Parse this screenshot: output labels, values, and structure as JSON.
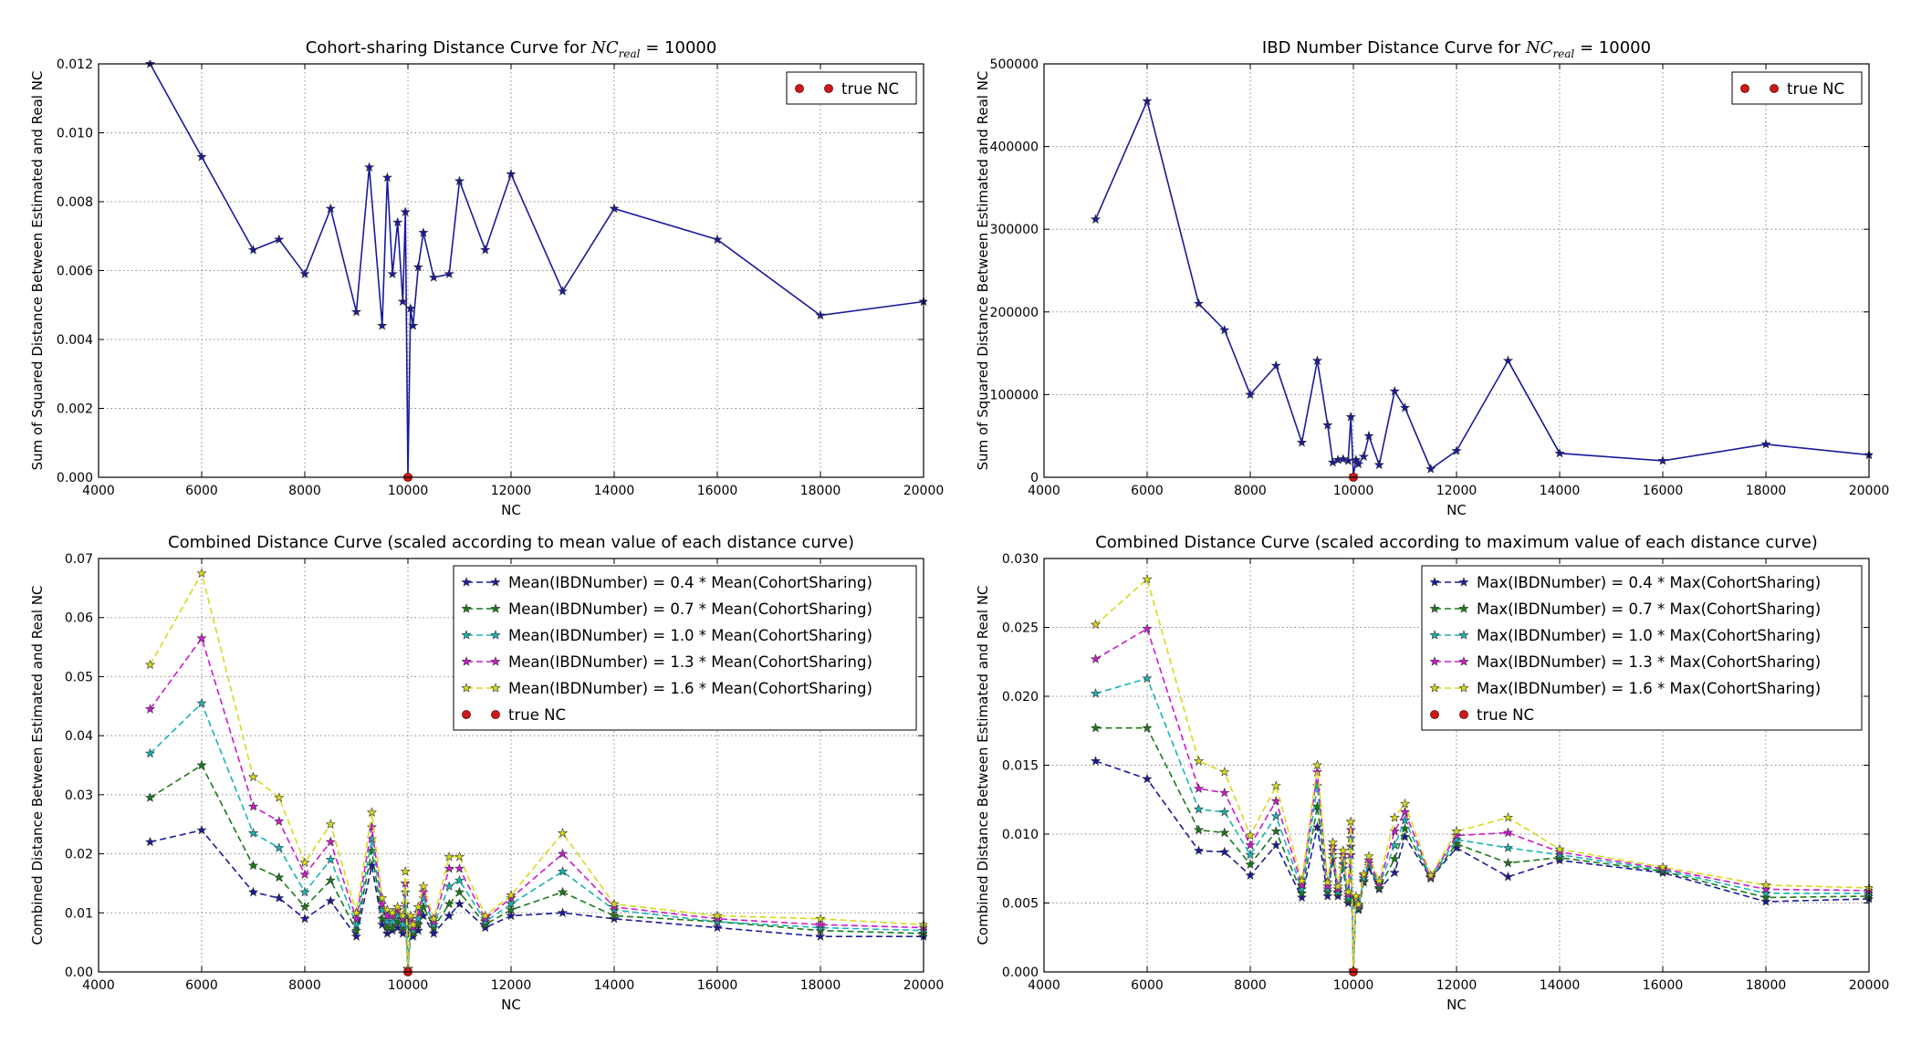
{
  "chart_data": [
    {
      "type": "line",
      "title": "Cohort-sharing Distance Curve for ",
      "title_math": {
        "base": "NC",
        "sub": "real",
        "rest": " = 10000"
      },
      "xlabel": "NC",
      "ylabel": "Sum of Squared Distance Between Estimated and Real NC",
      "xlim": [
        4000,
        20000
      ],
      "ylim": [
        0,
        0.012
      ],
      "xticks": [
        "4000",
        "6000",
        "8000",
        "10000",
        "12000",
        "14000",
        "16000",
        "18000",
        "20000"
      ],
      "yticks": [
        "0.000",
        "0.002",
        "0.004",
        "0.006",
        "0.008",
        "0.010",
        "0.012"
      ],
      "grid": true,
      "legend_position": "top-right",
      "x": [
        5000,
        6000,
        7000,
        7500,
        8000,
        8500,
        9000,
        9250,
        9500,
        9600,
        9700,
        9800,
        9900,
        9950,
        10000,
        10050,
        10100,
        10200,
        10300,
        10500,
        10800,
        11000,
        11500,
        12000,
        13000,
        14000,
        16000,
        18000,
        20000
      ],
      "series": [
        {
          "values": [
            0.012,
            0.0093,
            0.0066,
            0.0069,
            0.0059,
            0.0078,
            0.0048,
            0.009,
            0.0044,
            0.0087,
            0.0059,
            0.0074,
            0.0051,
            0.0077,
            0.0,
            0.0049,
            0.0044,
            0.0061,
            0.0071,
            0.0058,
            0.0059,
            0.0086,
            0.0066,
            0.0088,
            0.0054,
            0.0078,
            0.0069,
            0.0047,
            0.0051
          ],
          "color": "#1a1a9c",
          "style": "solid"
        }
      ],
      "true_nc": {
        "name": "true NC",
        "x": 10000,
        "y": 0,
        "color": "#cc1a1a"
      }
    },
    {
      "type": "line",
      "title": "IBD Number Distance Curve for ",
      "title_math": {
        "base": "NC",
        "sub": "real",
        "rest": " = 10000"
      },
      "xlabel": "NC",
      "ylabel": "Sum of Squared Distance Between Estimated and Real NC",
      "xlim": [
        4000,
        20000
      ],
      "ylim": [
        0,
        500000
      ],
      "xticks": [
        "4000",
        "6000",
        "8000",
        "10000",
        "12000",
        "14000",
        "16000",
        "18000",
        "20000"
      ],
      "yticks": [
        "0",
        "100000",
        "200000",
        "300000",
        "400000",
        "500000"
      ],
      "grid": true,
      "legend_position": "top-right",
      "x": [
        5000,
        6000,
        7000,
        7500,
        8000,
        8500,
        9000,
        9300,
        9500,
        9600,
        9700,
        9800,
        9900,
        9950,
        10000,
        10050,
        10100,
        10200,
        10300,
        10500,
        10800,
        11000,
        11500,
        12000,
        13000,
        14000,
        16000,
        18000,
        20000
      ],
      "series": [
        {
          "values": [
            312000,
            455000,
            210000,
            178000,
            100000,
            135000,
            42000,
            141000,
            63000,
            18000,
            21000,
            22000,
            20000,
            73000,
            2000,
            21000,
            16000,
            25000,
            50000,
            15000,
            104000,
            84000,
            10000,
            32000,
            141000,
            29000,
            20000,
            40000,
            27000
          ],
          "color": "#1a1a9c",
          "style": "solid"
        }
      ],
      "true_nc": {
        "name": "true NC",
        "x": 10000,
        "y": 0,
        "color": "#cc1a1a"
      }
    },
    {
      "type": "line",
      "title": "Combined Distance Curve (scaled according to mean value of each distance curve)",
      "xlabel": "NC",
      "ylabel": "Combined Distance Between Estimated and Real NC",
      "xlim": [
        4000,
        20000
      ],
      "ylim": [
        0,
        0.07
      ],
      "xticks": [
        "4000",
        "6000",
        "8000",
        "10000",
        "12000",
        "14000",
        "16000",
        "18000",
        "20000"
      ],
      "yticks": [
        "0.00",
        "0.01",
        "0.02",
        "0.03",
        "0.04",
        "0.05",
        "0.06",
        "0.07"
      ],
      "grid": true,
      "legend_position": "top-right",
      "x": [
        5000,
        6000,
        7000,
        7500,
        8000,
        8500,
        9000,
        9300,
        9500,
        9600,
        9700,
        9800,
        9900,
        9950,
        10000,
        10050,
        10100,
        10200,
        10300,
        10500,
        10800,
        11000,
        11500,
        12000,
        13000,
        14000,
        16000,
        18000,
        20000
      ],
      "series": [
        {
          "name": "Mean(IBDNumber) = 0.4 * Mean(CohortSharing)",
          "color": "#1a1a9c",
          "style": "dashed",
          "values": [
            0.022,
            0.024,
            0.0135,
            0.0125,
            0.009,
            0.012,
            0.006,
            0.018,
            0.008,
            0.0065,
            0.007,
            0.0075,
            0.0065,
            0.0095,
            0.0005,
            0.0065,
            0.006,
            0.007,
            0.0095,
            0.0065,
            0.0095,
            0.0115,
            0.0075,
            0.0095,
            0.01,
            0.009,
            0.0075,
            0.006,
            0.006
          ]
        },
        {
          "name": "Mean(IBDNumber) = 0.7 * Mean(CohortSharing)",
          "color": "#1a7a1a",
          "style": "dashed",
          "values": [
            0.0295,
            0.035,
            0.018,
            0.016,
            0.011,
            0.0155,
            0.007,
            0.0205,
            0.009,
            0.0075,
            0.0075,
            0.0085,
            0.0075,
            0.0115,
            0.0005,
            0.0075,
            0.0065,
            0.008,
            0.011,
            0.0075,
            0.0115,
            0.0135,
            0.008,
            0.0105,
            0.0135,
            0.0095,
            0.0085,
            0.007,
            0.0065
          ]
        },
        {
          "name": "Mean(IBDNumber) = 1.0 * Mean(CohortSharing)",
          "color": "#1ab3b3",
          "style": "dashed",
          "values": [
            0.037,
            0.0455,
            0.0235,
            0.021,
            0.0135,
            0.019,
            0.008,
            0.0225,
            0.0105,
            0.0085,
            0.0085,
            0.0095,
            0.008,
            0.0135,
            0.0005,
            0.0085,
            0.007,
            0.009,
            0.0125,
            0.008,
            0.0145,
            0.0155,
            0.0085,
            0.0115,
            0.017,
            0.0105,
            0.0085,
            0.0075,
            0.007
          ]
        },
        {
          "name": "Mean(IBDNumber) = 1.3 * Mean(CohortSharing)",
          "color": "#cc1acc",
          "style": "dashed",
          "values": [
            0.0445,
            0.0565,
            0.028,
            0.0255,
            0.0165,
            0.022,
            0.009,
            0.0245,
            0.0115,
            0.0095,
            0.0095,
            0.0105,
            0.009,
            0.015,
            0.0005,
            0.009,
            0.0075,
            0.01,
            0.0135,
            0.0085,
            0.0175,
            0.0175,
            0.009,
            0.0125,
            0.02,
            0.011,
            0.009,
            0.008,
            0.0075
          ]
        },
        {
          "name": "Mean(IBDNumber) = 1.6 * Mean(CohortSharing)",
          "color": "#d9d91a",
          "style": "dashed",
          "values": [
            0.052,
            0.0675,
            0.033,
            0.0295,
            0.0185,
            0.025,
            0.01,
            0.027,
            0.0125,
            0.0105,
            0.01,
            0.011,
            0.0095,
            0.017,
            0.0005,
            0.0095,
            0.008,
            0.011,
            0.0145,
            0.009,
            0.0195,
            0.0195,
            0.0095,
            0.013,
            0.0235,
            0.0115,
            0.0095,
            0.009,
            0.008
          ]
        }
      ],
      "true_nc": {
        "name": "true NC",
        "x": 10000,
        "y": 0,
        "color": "#cc1a1a"
      }
    },
    {
      "type": "line",
      "title": "Combined Distance Curve (scaled according to maximum value of each distance curve)",
      "xlabel": "NC",
      "ylabel": "Combined Distance Between Estimated and Real NC",
      "xlim": [
        4000,
        20000
      ],
      "ylim": [
        0,
        0.03
      ],
      "xticks": [
        "4000",
        "6000",
        "8000",
        "10000",
        "12000",
        "14000",
        "16000",
        "18000",
        "20000"
      ],
      "yticks": [
        "0.000",
        "0.005",
        "0.010",
        "0.015",
        "0.020",
        "0.025",
        "0.030"
      ],
      "grid": true,
      "legend_position": "top-right",
      "x": [
        5000,
        6000,
        7000,
        7500,
        8000,
        8500,
        9000,
        9300,
        9500,
        9600,
        9700,
        9800,
        9900,
        9950,
        10000,
        10050,
        10100,
        10200,
        10300,
        10500,
        10800,
        11000,
        11500,
        12000,
        13000,
        14000,
        16000,
        18000,
        20000
      ],
      "series": [
        {
          "name": "Max(IBDNumber) = 0.4 * Max(CohortSharing)",
          "color": "#1a1a9c",
          "style": "dashed",
          "values": [
            0.0153,
            0.014,
            0.0088,
            0.0087,
            0.007,
            0.0092,
            0.0054,
            0.0105,
            0.0055,
            0.0082,
            0.0055,
            0.0075,
            0.005,
            0.0085,
            0.0001,
            0.005,
            0.0045,
            0.0065,
            0.0075,
            0.006,
            0.0072,
            0.0098,
            0.0068,
            0.009,
            0.0069,
            0.0081,
            0.0072,
            0.0051,
            0.0053
          ]
        },
        {
          "name": "Max(IBDNumber) = 0.7 * Max(CohortSharing)",
          "color": "#1a7a1a",
          "style": "dashed",
          "values": [
            0.0177,
            0.0177,
            0.0103,
            0.0101,
            0.0078,
            0.0102,
            0.0057,
            0.012,
            0.0058,
            0.0085,
            0.0057,
            0.0078,
            0.0052,
            0.0091,
            0.0001,
            0.0051,
            0.0046,
            0.0066,
            0.0077,
            0.0061,
            0.0082,
            0.0104,
            0.0068,
            0.0093,
            0.0079,
            0.0083,
            0.0073,
            0.0054,
            0.0055
          ]
        },
        {
          "name": "Max(IBDNumber) = 1.0 * Max(CohortSharing)",
          "color": "#1ab3b3",
          "style": "dashed",
          "values": [
            0.0202,
            0.0213,
            0.0118,
            0.0116,
            0.0085,
            0.0113,
            0.006,
            0.0135,
            0.006,
            0.0088,
            0.0058,
            0.0082,
            0.0054,
            0.0097,
            0.0001,
            0.0053,
            0.0047,
            0.0068,
            0.0079,
            0.0063,
            0.0092,
            0.011,
            0.0069,
            0.0096,
            0.009,
            0.0085,
            0.0074,
            0.0057,
            0.0057
          ]
        },
        {
          "name": "Max(IBDNumber) = 1.3 * Max(CohortSharing)",
          "color": "#cc1acc",
          "style": "dashed",
          "values": [
            0.0227,
            0.0249,
            0.0133,
            0.013,
            0.0092,
            0.0124,
            0.0063,
            0.0145,
            0.0062,
            0.0091,
            0.006,
            0.0085,
            0.0056,
            0.0103,
            0.0001,
            0.0054,
            0.0048,
            0.007,
            0.0081,
            0.0064,
            0.0102,
            0.0116,
            0.0069,
            0.0099,
            0.0101,
            0.0087,
            0.0075,
            0.006,
            0.0059
          ]
        },
        {
          "name": "Max(IBDNumber) = 1.6 * Max(CohortSharing)",
          "color": "#d9d91a",
          "style": "dashed",
          "values": [
            0.0252,
            0.0285,
            0.0153,
            0.0145,
            0.0099,
            0.0135,
            0.0066,
            0.015,
            0.0065,
            0.0094,
            0.0062,
            0.0088,
            0.0058,
            0.0109,
            0.0001,
            0.0055,
            0.0049,
            0.0071,
            0.0084,
            0.0066,
            0.0112,
            0.0122,
            0.007,
            0.0102,
            0.0112,
            0.0089,
            0.0076,
            0.0063,
            0.0061
          ]
        }
      ],
      "true_nc": {
        "name": "true NC",
        "x": 10000,
        "y": 0,
        "color": "#cc1a1a"
      }
    }
  ]
}
